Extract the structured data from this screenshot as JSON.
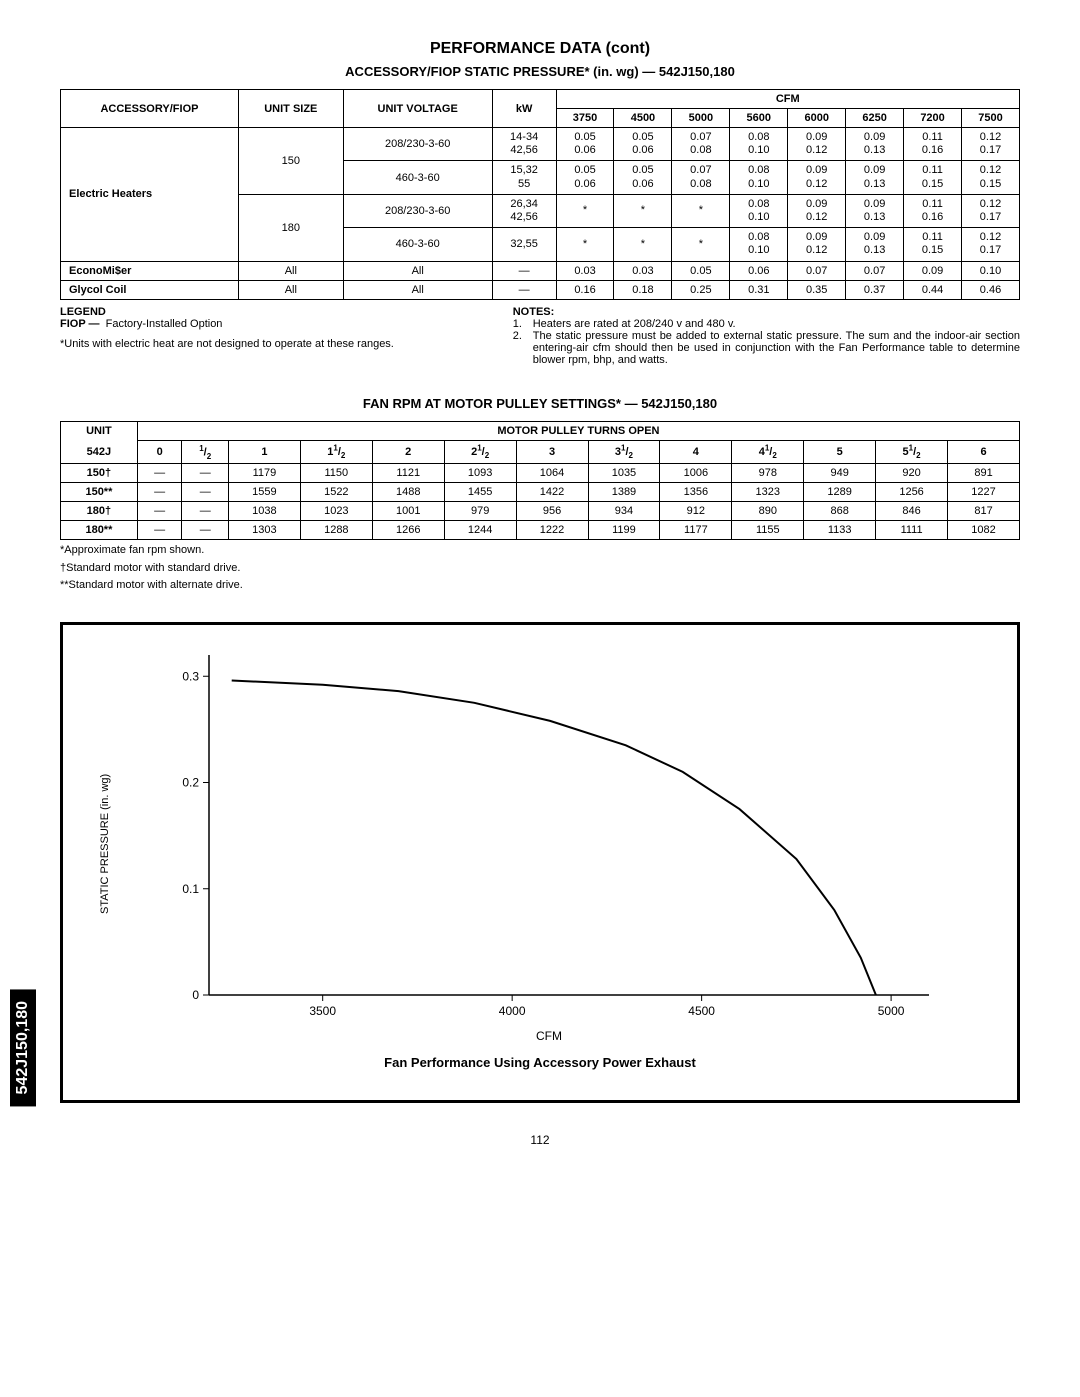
{
  "page_title": "PERFORMANCE DATA (cont)",
  "table1": {
    "title": "ACCESSORY/FIOP STATIC PRESSURE* (in. wg) — 542J150,180",
    "head": {
      "accessory": "ACCESSORY/FIOP",
      "unit_size": "UNIT SIZE",
      "unit_voltage": "UNIT VOLTAGE",
      "kw": "kW",
      "cfm": "CFM",
      "cfm_cols": [
        "3750",
        "4500",
        "5000",
        "5600",
        "6000",
        "6250",
        "7200",
        "7500"
      ]
    },
    "electric_heaters_label": "Electric Heaters",
    "rows_eh": [
      {
        "size": "150",
        "voltage": "208/230-3-60",
        "kw_top": "14-34",
        "kw_bot": "42,56",
        "top": [
          "0.05",
          "0.05",
          "0.07",
          "0.08",
          "0.09",
          "0.09",
          "0.11",
          "0.12"
        ],
        "bot": [
          "0.06",
          "0.06",
          "0.08",
          "0.10",
          "0.12",
          "0.13",
          "0.16",
          "0.17"
        ]
      },
      {
        "size": "150",
        "voltage": "460-3-60",
        "kw_top": "15,32",
        "kw_bot": "55",
        "top": [
          "0.05",
          "0.05",
          "0.07",
          "0.08",
          "0.09",
          "0.09",
          "0.11",
          "0.12"
        ],
        "bot": [
          "0.06",
          "0.06",
          "0.08",
          "0.10",
          "0.12",
          "0.13",
          "0.15",
          "0.15"
        ]
      },
      {
        "size": "180",
        "voltage": "208/230-3-60",
        "kw_top": "26,34",
        "kw_bot": "42,56",
        "top": [
          "*",
          "*",
          "*",
          "0.08",
          "0.09",
          "0.09",
          "0.11",
          "0.12"
        ],
        "bot": [
          "",
          "",
          "",
          "0.10",
          "0.12",
          "0.13",
          "0.16",
          "0.17"
        ]
      },
      {
        "size": "180",
        "voltage": "460-3-60",
        "kw_top": "32,55",
        "kw_bot": "",
        "top": [
          "*",
          "*",
          "*",
          "0.08",
          "0.09",
          "0.09",
          "0.11",
          "0.12"
        ],
        "bot": [
          "",
          "",
          "",
          "0.10",
          "0.12",
          "0.13",
          "0.15",
          "0.17"
        ]
      }
    ],
    "economiser": {
      "label": "EconoMi$er",
      "size": "All",
      "voltage": "All",
      "kw": "—",
      "vals": [
        "0.03",
        "0.03",
        "0.05",
        "0.06",
        "0.07",
        "0.07",
        "0.09",
        "0.10"
      ]
    },
    "glycol": {
      "label": "Glycol Coil",
      "size": "All",
      "voltage": "All",
      "kw": "—",
      "vals": [
        "0.16",
        "0.18",
        "0.25",
        "0.31",
        "0.35",
        "0.37",
        "0.44",
        "0.46"
      ]
    }
  },
  "legend": {
    "title": "LEGEND",
    "fiop_label": "FIOP  —",
    "fiop_text": "Factory-Installed Option",
    "note_star": "*Units with electric heat are not designed to operate at these ranges."
  },
  "notes": {
    "title": "NOTES:",
    "items": [
      "Heaters are rated at 208/240 v and 480 v.",
      "The static pressure must be added to external static pressure. The sum and the indoor-air section entering-air cfm should then be used in conjunction with the Fan Performance table to determine blower rpm, bhp, and watts."
    ]
  },
  "table2": {
    "title": "FAN RPM AT MOTOR PULLEY SETTINGS* — 542J150,180",
    "unit_head_top": "UNIT",
    "unit_head_bot": "542J",
    "pulley_head": "MOTOR PULLEY TURNS OPEN",
    "turns": [
      "0",
      "1/2",
      "1",
      "11/2",
      "2",
      "21/2",
      "3",
      "31/2",
      "4",
      "41/2",
      "5",
      "51/2",
      "6"
    ],
    "rows": [
      {
        "label": "150†",
        "vals": [
          "—",
          "—",
          "1179",
          "1150",
          "1121",
          "1093",
          "1064",
          "1035",
          "1006",
          "978",
          "949",
          "920",
          "891"
        ]
      },
      {
        "label": "150**",
        "vals": [
          "—",
          "—",
          "1559",
          "1522",
          "1488",
          "1455",
          "1422",
          "1389",
          "1356",
          "1323",
          "1289",
          "1256",
          "1227"
        ]
      },
      {
        "label": "180†",
        "vals": [
          "—",
          "—",
          "1038",
          "1023",
          "1001",
          "979",
          "956",
          "934",
          "912",
          "890",
          "868",
          "846",
          "817"
        ]
      },
      {
        "label": "180**",
        "vals": [
          "—",
          "—",
          "1303",
          "1288",
          "1266",
          "1244",
          "1222",
          "1199",
          "1177",
          "1155",
          "1133",
          "1111",
          "1082"
        ]
      }
    ],
    "footnotes": [
      "*Approximate fan rpm shown.",
      "†Standard motor with standard drive.",
      "**Standard motor with alternate drive."
    ]
  },
  "chart": {
    "type": "line",
    "y_label": "STATIC PRESSURE (in. wg)",
    "x_label": "CFM",
    "caption": "Fan Performance Using Accessory Power Exhaust",
    "x_ticks": [
      "3500",
      "4000",
      "4500",
      "5000"
    ],
    "y_ticks": [
      "0",
      "0.1",
      "0.2",
      "0.3"
    ],
    "xlim": [
      3200,
      5100
    ],
    "ylim": [
      0,
      0.32
    ],
    "curve_points": [
      [
        3260,
        0.296
      ],
      [
        3500,
        0.292
      ],
      [
        3700,
        0.286
      ],
      [
        3900,
        0.275
      ],
      [
        4100,
        0.258
      ],
      [
        4300,
        0.235
      ],
      [
        4450,
        0.21
      ],
      [
        4600,
        0.175
      ],
      [
        4750,
        0.128
      ],
      [
        4850,
        0.08
      ],
      [
        4920,
        0.035
      ],
      [
        4960,
        0.0
      ]
    ],
    "line_color": "#000000",
    "line_width": 2,
    "axis_color": "#000000"
  },
  "side_tab": "542J150,180",
  "page_number": "112"
}
